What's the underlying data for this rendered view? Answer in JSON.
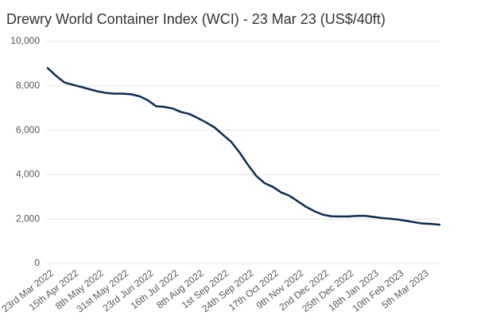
{
  "chart_data": {
    "type": "line",
    "title": "Drewry World Container Index (WCI) - 23 Mar 23 (US$/40ft)",
    "categories": [
      "23rd Mar 2022",
      null,
      null,
      "15th Apr 2022",
      null,
      null,
      "8th May 2022",
      null,
      null,
      "31st May 2022",
      null,
      null,
      "23rd Jun 2022",
      null,
      null,
      "16th Jul 2022",
      null,
      null,
      "8th Aug 2022",
      null,
      null,
      "1st Sep 2022",
      null,
      null,
      "24th Sep 2022",
      null,
      null,
      "17th Oct 2022",
      null,
      null,
      "9th Nov 2022",
      null,
      null,
      "2nd Dec 2022",
      null,
      null,
      "25th Dec 2022",
      null,
      null,
      "18th Jan 2023",
      null,
      null,
      "10th Feb 2023",
      null,
      null,
      "5th Mar 2023",
      null,
      null
    ],
    "values": [
      8800,
      8450,
      8150,
      8050,
      7950,
      7850,
      7750,
      7680,
      7650,
      7650,
      7620,
      7530,
      7350,
      7080,
      7050,
      6980,
      6820,
      6730,
      6550,
      6350,
      6130,
      5800,
      5480,
      5000,
      4450,
      3950,
      3620,
      3450,
      3200,
      3050,
      2800,
      2550,
      2350,
      2200,
      2130,
      2120,
      2120,
      2140,
      2150,
      2100,
      2050,
      2020,
      1980,
      1920,
      1860,
      1800,
      1780,
      1750
    ],
    "color": "#0f2a4f",
    "ylim": [
      0,
      10000
    ],
    "yticks": [
      0,
      {
        "value": 2000,
        "label": "2,000"
      },
      {
        "value": 4000,
        "label": "4,000"
      },
      {
        "value": 6000,
        "label": "6,000"
      },
      {
        "value": 8000,
        "label": "8,000"
      },
      {
        "value": 10000,
        "label": "10,000"
      }
    ],
    "grid": true
  }
}
